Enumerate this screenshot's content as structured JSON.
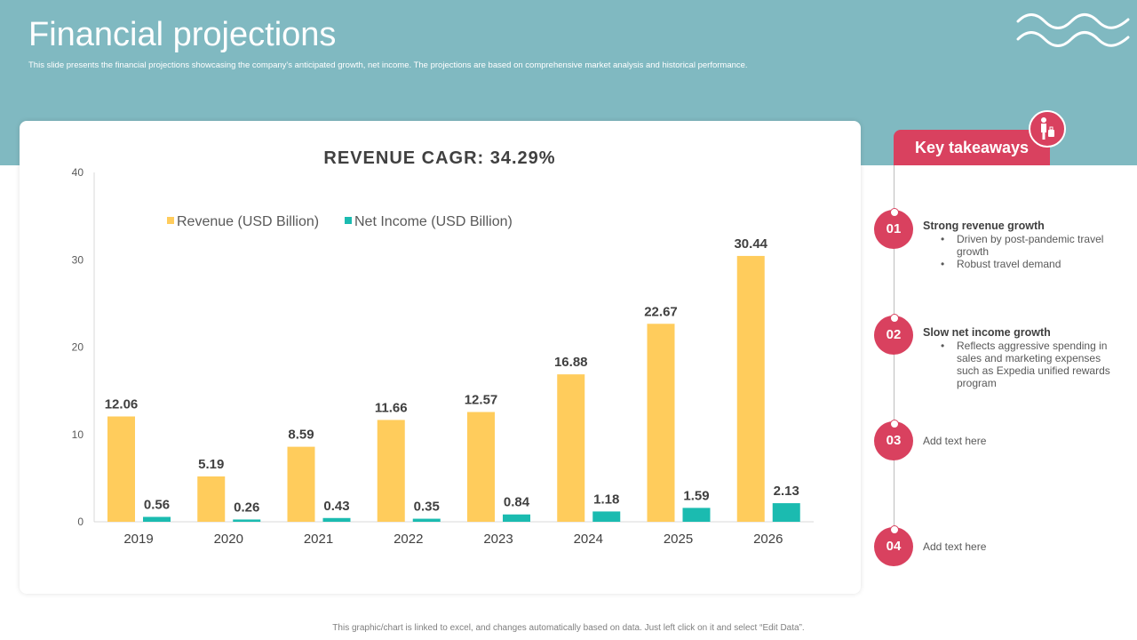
{
  "header": {
    "title": "Financial projections",
    "subtitle": "This slide presents the financial projections showcasing the company's anticipated growth, net income. The projections are based on comprehensive market analysis and historical performance."
  },
  "chart_data": {
    "type": "bar",
    "title": "REVENUE CAGR: 34.29%",
    "categories": [
      "2019",
      "2020",
      "2021",
      "2022",
      "2023",
      "2024",
      "2025",
      "2026"
    ],
    "series": [
      {
        "name": "Revenue (USD Billion)",
        "color": "#ffcc5c",
        "values": [
          12.06,
          5.19,
          8.59,
          11.66,
          12.57,
          16.88,
          22.67,
          30.44
        ]
      },
      {
        "name": "Net Income (USD Billion)",
        "color": "#1bbbb0",
        "values": [
          0.56,
          0.26,
          0.43,
          0.35,
          0.84,
          1.18,
          1.59,
          2.13
        ]
      }
    ],
    "ylim": [
      0,
      40
    ],
    "yticks": [
      0,
      10,
      20,
      30,
      40
    ],
    "legend": "top",
    "grid": false,
    "data_labels": true
  },
  "takeaways": {
    "header": "Key takeaways",
    "items": [
      {
        "number": "01",
        "heading": "Strong revenue growth",
        "bullets": [
          "Driven by post-pandemic travel growth",
          "Robust travel demand"
        ]
      },
      {
        "number": "02",
        "heading": "Slow net income growth",
        "bullets": [
          "Reflects aggressive spending in sales and marketing expenses such as Expedia unified rewards program"
        ]
      },
      {
        "number": "03",
        "heading": "",
        "text": "Add text here",
        "bullets": []
      },
      {
        "number": "04",
        "heading": "",
        "text": "Add text here",
        "bullets": []
      }
    ]
  },
  "footer": {
    "note": "This graphic/chart is linked to excel, and changes automatically based on data. Just left click on it and select “Edit Data”."
  },
  "colors": {
    "header_band": "#80b9c1",
    "accent": "#d9415f"
  },
  "icons": {
    "wave": "wave-decoration-icon",
    "takeaways": "traveler-with-luggage-icon"
  }
}
